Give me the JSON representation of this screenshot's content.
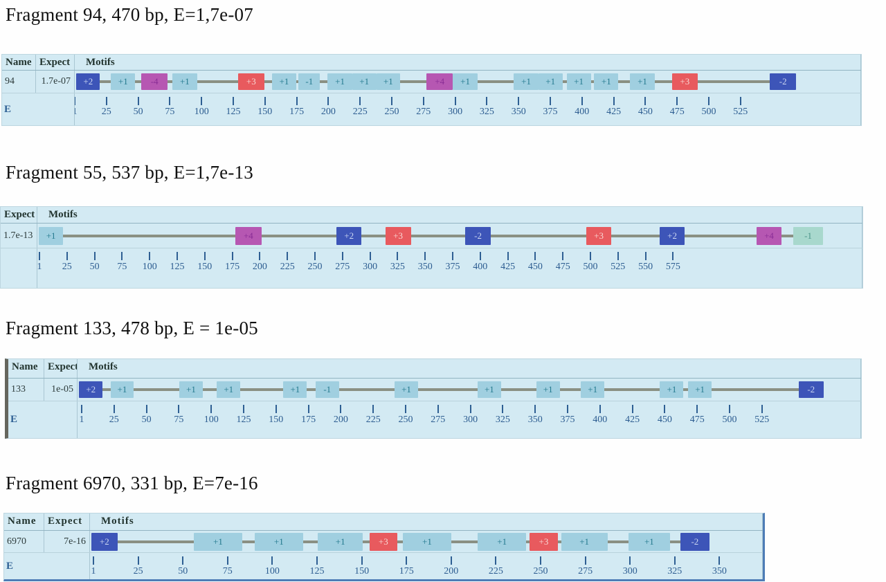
{
  "palette": {
    "blue": {
      "bg": "#3d55b8",
      "fg": "#cdd8f2"
    },
    "cyan": {
      "bg": "#a0cfe0",
      "fg": "#23798e"
    },
    "teal": {
      "bg": "#a8d8cd",
      "fg": "#4b958a"
    },
    "red": {
      "bg": "#e85a5e",
      "fg": "#f8d8d5"
    },
    "purple": {
      "bg": "#b657b2",
      "fg": "#8a2d96"
    }
  },
  "line_color": "#8a9083",
  "fragments": [
    {
      "heading": "Fragment 94, 470 bp, E=1,7e-07",
      "cols": [
        "Name",
        "Expect",
        "Motifs"
      ],
      "name": "94",
      "expect": "1.7e-07",
      "row_label": "E",
      "motifs": [
        {
          "label": "+2",
          "color": "blue",
          "x": 0.2,
          "w": 3.0
        },
        {
          "label": "+1",
          "color": "cyan",
          "x": 4.6,
          "w": 3.1
        },
        {
          "label": "-4",
          "color": "purple",
          "x": 8.5,
          "w": 3.3
        },
        {
          "label": "+1",
          "color": "cyan",
          "x": 12.4,
          "w": 3.2
        },
        {
          "label": "+3",
          "color": "red",
          "x": 20.8,
          "w": 3.3
        },
        {
          "label": "+1",
          "color": "cyan",
          "x": 25.1,
          "w": 3.1
        },
        {
          "label": "-1",
          "color": "cyan",
          "x": 28.5,
          "w": 2.7
        },
        {
          "label": "+1",
          "color": "cyan",
          "x": 32.2,
          "w": 3.1
        },
        {
          "label": "+1",
          "color": "cyan",
          "x": 35.3,
          "w": 3.1
        },
        {
          "label": "+1",
          "color": "cyan",
          "x": 38.4,
          "w": 3.0
        },
        {
          "label": "+4",
          "color": "purple",
          "x": 44.8,
          "w": 3.3
        },
        {
          "label": "+1",
          "color": "cyan",
          "x": 48.1,
          "w": 3.2
        },
        {
          "label": "+1",
          "color": "cyan",
          "x": 55.9,
          "w": 3.1
        },
        {
          "label": "+1",
          "color": "cyan",
          "x": 59.0,
          "w": 3.1
        },
        {
          "label": "+1",
          "color": "cyan",
          "x": 62.6,
          "w": 3.1
        },
        {
          "label": "+1",
          "color": "cyan",
          "x": 66.1,
          "w": 3.1
        },
        {
          "label": "+1",
          "color": "cyan",
          "x": 70.7,
          "w": 3.1
        },
        {
          "label": "+3",
          "color": "red",
          "x": 76.0,
          "w": 3.3
        },
        {
          "label": "-2",
          "color": "blue",
          "x": 88.5,
          "w": 3.3
        }
      ],
      "ruler_ticks": [
        1,
        25,
        50,
        75,
        100,
        125,
        150,
        175,
        200,
        225,
        250,
        275,
        300,
        325,
        350,
        375,
        400,
        425,
        450,
        475,
        500,
        525
      ]
    },
    {
      "heading": "Fragment 55, 537 bp, E=1,7e-13",
      "cols": [
        "Expect",
        "Motifs"
      ],
      "expect": "1.7e-13",
      "row_label": "",
      "motifs": [
        {
          "label": "+1",
          "color": "cyan",
          "x": 0.2,
          "w": 2.9
        },
        {
          "label": "+4",
          "color": "purple",
          "x": 24.0,
          "w": 3.2
        },
        {
          "label": "+2",
          "color": "blue",
          "x": 36.3,
          "w": 3.0
        },
        {
          "label": "+3",
          "color": "red",
          "x": 42.2,
          "w": 3.1
        },
        {
          "label": "-2",
          "color": "blue",
          "x": 51.9,
          "w": 3.1
        },
        {
          "label": "+3",
          "color": "red",
          "x": 66.6,
          "w": 3.0
        },
        {
          "label": "+2",
          "color": "blue",
          "x": 75.5,
          "w": 3.0
        },
        {
          "label": "+4",
          "color": "purple",
          "x": 87.2,
          "w": 3.1
        },
        {
          "label": "-1",
          "color": "teal",
          "x": 91.7,
          "w": 3.6
        }
      ],
      "ruler_ticks": [
        1,
        25,
        50,
        75,
        100,
        125,
        150,
        175,
        200,
        225,
        250,
        275,
        300,
        325,
        350,
        375,
        400,
        425,
        450,
        475,
        500,
        525,
        550,
        575
      ]
    },
    {
      "heading": "Fragment 133, 478 bp, E = 1e-05",
      "cols": [
        "Name",
        "Expect",
        "Motifs"
      ],
      "name": "133",
      "expect": "1e-05",
      "row_label": "E",
      "motifs": [
        {
          "label": "+2",
          "color": "blue",
          "x": 0.2,
          "w": 3.0
        },
        {
          "label": "+1",
          "color": "cyan",
          "x": 4.2,
          "w": 3.0
        },
        {
          "label": "+1",
          "color": "cyan",
          "x": 13.0,
          "w": 3.0
        },
        {
          "label": "+1",
          "color": "cyan",
          "x": 17.8,
          "w": 3.0
        },
        {
          "label": "+1",
          "color": "cyan",
          "x": 26.3,
          "w": 3.0
        },
        {
          "label": "-1",
          "color": "cyan",
          "x": 30.4,
          "w": 3.0
        },
        {
          "label": "+1",
          "color": "cyan",
          "x": 40.5,
          "w": 3.0
        },
        {
          "label": "+1",
          "color": "cyan",
          "x": 51.1,
          "w": 3.0
        },
        {
          "label": "+1",
          "color": "cyan",
          "x": 58.6,
          "w": 3.0
        },
        {
          "label": "+1",
          "color": "cyan",
          "x": 64.3,
          "w": 3.0
        },
        {
          "label": "+1",
          "color": "cyan",
          "x": 74.4,
          "w": 3.0
        },
        {
          "label": "+1",
          "color": "cyan",
          "x": 78.0,
          "w": 3.0
        },
        {
          "label": "-2",
          "color": "blue",
          "x": 92.1,
          "w": 3.2
        }
      ],
      "ruler_ticks": [
        1,
        25,
        50,
        75,
        100,
        125,
        150,
        175,
        200,
        225,
        250,
        275,
        300,
        325,
        350,
        375,
        400,
        425,
        450,
        475,
        500,
        525
      ]
    },
    {
      "heading": "Fragment 6970, 331 bp, E=7e-16",
      "cols": [
        "Name",
        "Expect",
        "Motifs"
      ],
      "name": "6970",
      "expect": "7e-16",
      "row_label": "E",
      "motifs": [
        {
          "label": "+2",
          "color": "blue",
          "x": 0.2,
          "w": 3.9
        },
        {
          "label": "+1",
          "color": "cyan",
          "x": 15.4,
          "w": 7.3
        },
        {
          "label": "+1",
          "color": "cyan",
          "x": 24.5,
          "w": 7.2
        },
        {
          "label": "+1",
          "color": "cyan",
          "x": 33.9,
          "w": 6.7
        },
        {
          "label": "+3",
          "color": "red",
          "x": 41.6,
          "w": 4.1
        },
        {
          "label": "+1",
          "color": "cyan",
          "x": 46.5,
          "w": 7.3
        },
        {
          "label": "+1",
          "color": "cyan",
          "x": 57.7,
          "w": 7.2
        },
        {
          "label": "+3",
          "color": "red",
          "x": 65.4,
          "w": 4.2
        },
        {
          "label": "+1",
          "color": "cyan",
          "x": 70.1,
          "w": 6.9
        },
        {
          "label": "+1",
          "color": "cyan",
          "x": 80.1,
          "w": 6.2
        },
        {
          "label": "-2",
          "color": "blue",
          "x": 87.8,
          "w": 4.4
        }
      ],
      "ruler_ticks": [
        1,
        25,
        50,
        75,
        100,
        125,
        150,
        175,
        200,
        225,
        250,
        275,
        300,
        325,
        350
      ]
    }
  ]
}
